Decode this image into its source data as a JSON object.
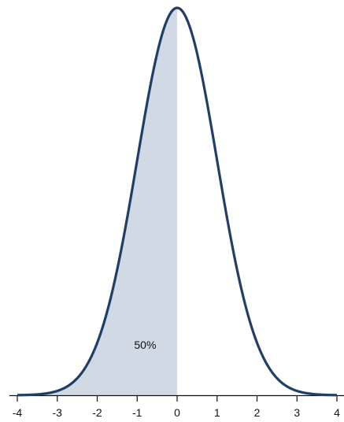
{
  "chart_data": {
    "type": "area",
    "title": "",
    "xlabel": "",
    "ylabel": "",
    "distribution": "standard normal",
    "xlim": [
      -4,
      4
    ],
    "ylim": [
      0,
      0.4
    ],
    "x_ticks": [
      "-4",
      "-3",
      "-2",
      "-1",
      "0",
      "1",
      "2",
      "3",
      "4"
    ],
    "shaded_region": {
      "from": -4,
      "to": 0
    },
    "annotation": {
      "text": "50%",
      "x": -0.8,
      "y": 0.048
    },
    "grid": false,
    "colors": {
      "curve": "#1f3f68",
      "fill": "#d1d9e4",
      "axis": "#111111"
    }
  }
}
